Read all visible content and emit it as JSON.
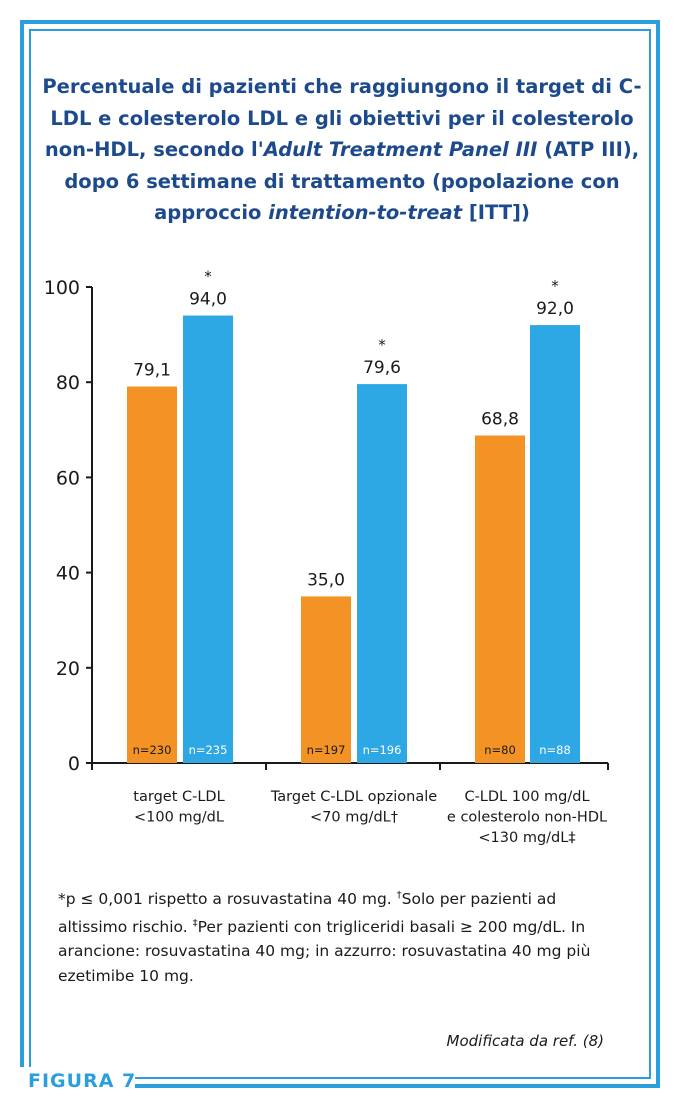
{
  "figure_label": "FIGURA 7",
  "title": {
    "part1": "Percentuale di pazienti che raggiungono il target di C-LDL e colesterolo LDL e gli obiettivi per il colesterolo non-HDL, secondo l'",
    "italic1": "Adult Treatment Panel III",
    "part2": " (ATP III), dopo 6 settimane di trattamento (popolazione con approccio ",
    "italic2": "intention-to-treat",
    "part3": " [ITT])"
  },
  "chart_data": {
    "type": "bar",
    "categories": [
      [
        "target C-LDL",
        "<100 mg/dL"
      ],
      [
        "Target C-LDL opzionale",
        "<70 mg/dL†"
      ],
      [
        "C-LDL 100 mg/dL",
        "e colesterolo non-HDL",
        "<130 mg/dL‡"
      ]
    ],
    "series": [
      {
        "color": "#f39325",
        "values": [
          79.1,
          35.0,
          68.8
        ],
        "labels": [
          "79,1",
          "35,0",
          "68,8"
        ],
        "n": [
          "n=230",
          "n=197",
          "n=80"
        ],
        "n_color": "#1a1a1a",
        "significant": [
          false,
          false,
          false
        ]
      },
      {
        "color": "#2ea8e4",
        "values": [
          94.0,
          79.6,
          92.0
        ],
        "labels": [
          "94,0",
          "79,6",
          "92,0"
        ],
        "n": [
          "n=235",
          "n=196",
          "n=88"
        ],
        "n_color": "#ffffff",
        "significant": [
          true,
          true,
          true
        ]
      }
    ],
    "significance_marker": "*",
    "ylim": [
      0,
      100
    ],
    "yticks": [
      0,
      20,
      40,
      60,
      80,
      100
    ],
    "grid": false
  },
  "footnote": {
    "line": "*p ≤ 0,001 rispetto a rosuvastatina 40 mg. ",
    "dagger": "†",
    "dagger_text": "Solo per pazienti ad altissimo rischio. ",
    "ddagger": "‡",
    "ddagger_text": "Per pazienti con trigliceridi basali ≥ 200 mg/dL. In arancione: rosuvastatina 40 mg; in azzurro: rosuvastatina 40 mg più ezetimibe 10 mg."
  },
  "source": "Modificata da ref. (8)"
}
